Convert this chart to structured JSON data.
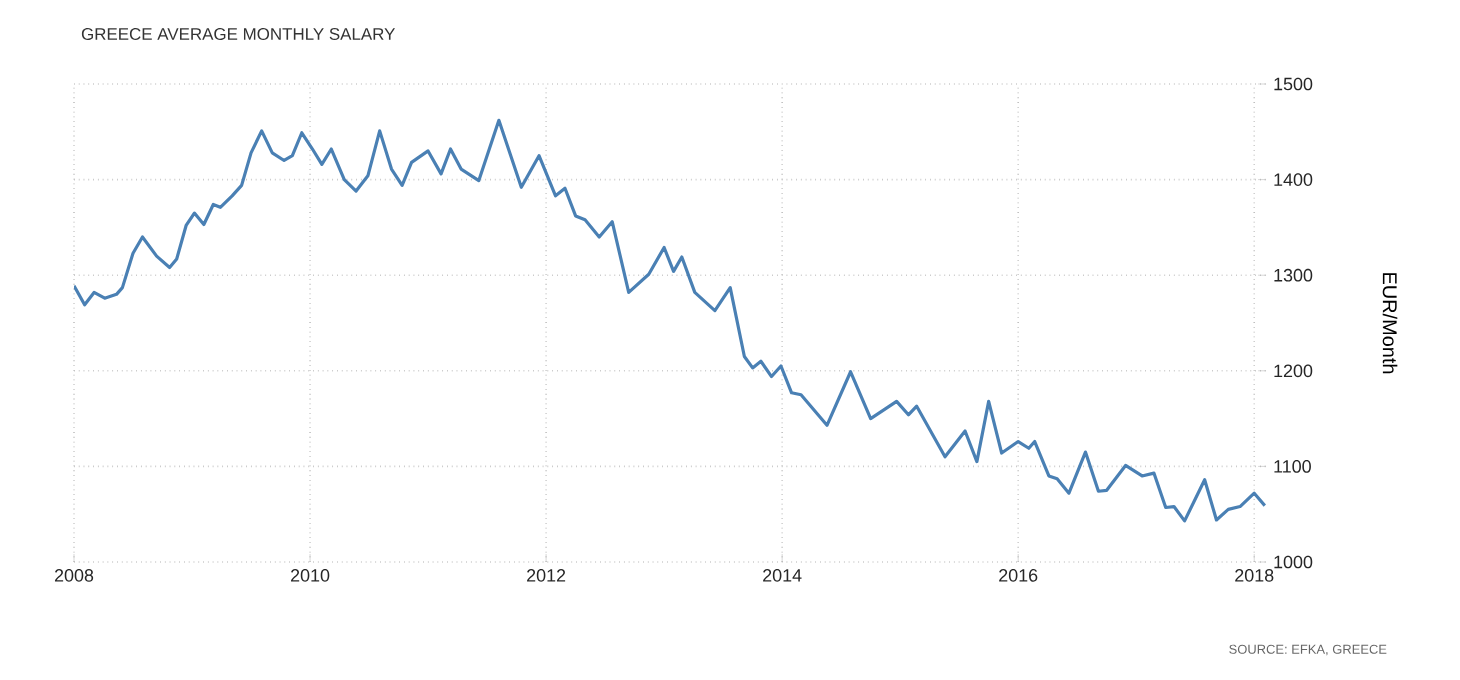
{
  "chart_data": {
    "type": "line",
    "title": "GREECE AVERAGE MONTHLY SALARY",
    "ylabel": "EUR/Month",
    "annotations": [
      "SOURCE: EFKA, GREECE"
    ],
    "x": [
      2008.0,
      2008.09,
      2008.17,
      2008.26,
      2008.36,
      2008.41,
      2008.5,
      2008.58,
      2008.7,
      2008.81,
      2008.87,
      2008.95,
      2009.02,
      2009.1,
      2009.18,
      2009.24,
      2009.34,
      2009.42,
      2009.5,
      2009.59,
      2009.68,
      2009.78,
      2009.85,
      2009.93,
      2010.02,
      2010.1,
      2010.18,
      2010.29,
      2010.39,
      2010.49,
      2010.59,
      2010.69,
      2010.78,
      2010.86,
      2011.0,
      2011.11,
      2011.19,
      2011.28,
      2011.43,
      2011.6,
      2011.79,
      2011.94,
      2012.08,
      2012.16,
      2012.25,
      2012.33,
      2012.45,
      2012.56,
      2012.7,
      2012.87,
      2013.0,
      2013.08,
      2013.15,
      2013.26,
      2013.43,
      2013.56,
      2013.68,
      2013.75,
      2013.82,
      2013.91,
      2013.99,
      2014.08,
      2014.16,
      2014.38,
      2014.58,
      2014.75,
      2014.97,
      2015.07,
      2015.14,
      2015.38,
      2015.55,
      2015.65,
      2015.75,
      2015.86,
      2016.0,
      2016.09,
      2016.14,
      2016.26,
      2016.33,
      2016.43,
      2016.57,
      2016.68,
      2016.75,
      2016.91,
      2017.05,
      2017.15,
      2017.25,
      2017.32,
      2017.41,
      2017.58,
      2017.68,
      2017.78,
      2017.88,
      2018.0,
      2018.09
    ],
    "values": [
      1289,
      1269,
      1282,
      1276,
      1280,
      1287,
      1323,
      1340,
      1320,
      1308,
      1317,
      1352,
      1365,
      1353,
      1374,
      1371,
      1383,
      1394,
      1428,
      1451,
      1428,
      1420,
      1425,
      1449,
      1432,
      1416,
      1432,
      1400,
      1388,
      1404,
      1451,
      1411,
      1394,
      1418,
      1430,
      1406,
      1432,
      1411,
      1399,
      1462,
      1392,
      1425,
      1383,
      1391,
      1362,
      1358,
      1340,
      1356,
      1282,
      1301,
      1329,
      1304,
      1319,
      1282,
      1263,
      1287,
      1215,
      1203,
      1210,
      1194,
      1205,
      1177,
      1175,
      1143,
      1199,
      1150,
      1168,
      1154,
      1163,
      1110,
      1137,
      1105,
      1168,
      1114,
      1126,
      1119,
      1126,
      1090,
      1087,
      1072,
      1115,
      1074,
      1075,
      1101,
      1090,
      1093,
      1057,
      1058,
      1043,
      1086,
      1044,
      1055,
      1058,
      1072,
      1059
    ],
    "color": "#4a80b4",
    "xlim": [
      2008,
      2018.1
    ],
    "ylim": [
      1000,
      1500
    ],
    "xticks": [
      2008,
      2010,
      2012,
      2014,
      2016,
      2018
    ],
    "yticks": [
      1000,
      1100,
      1200,
      1300,
      1400,
      1500
    ],
    "grid": true
  }
}
